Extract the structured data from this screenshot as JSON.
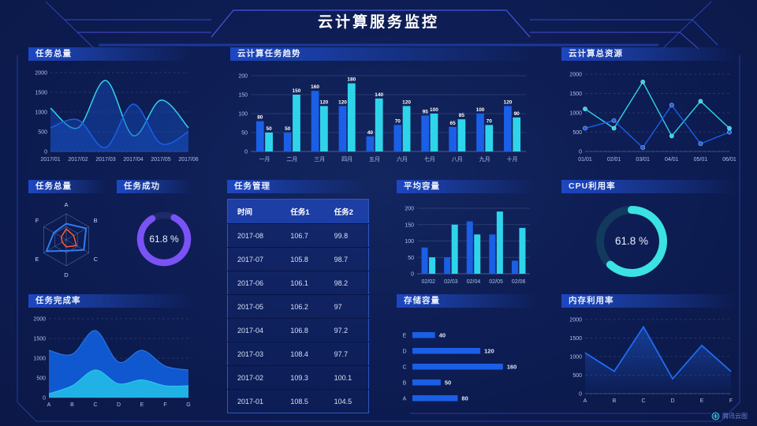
{
  "header": {
    "title": "云计算服务监控"
  },
  "footer": {
    "logo_text": "腾讯云图"
  },
  "colors": {
    "blue": "#1a5fe6",
    "cyan": "#2ed5ea",
    "area_blue": "#115cd6",
    "area_cyan": "#22b6e6",
    "line_blue": "#1f6bf2",
    "radar_blue": "#2e7cf2",
    "orange": "#ff5b33",
    "purple": "#7b52f5",
    "purple_track": "#1f2a68",
    "donut_cyan": "#3ae2e4",
    "cyan_track": "#123a5e",
    "accent_line": "#4a5be8"
  },
  "chart_data": [
    {
      "id": "task_total_line",
      "type": "area-smooth",
      "title": "任务总量",
      "x": [
        "2017/01",
        "2017/02",
        "2017/03",
        "2017/04",
        "2017/05",
        "2017/06"
      ],
      "series": [
        {
          "name": "series-cyan",
          "color": "cyan",
          "values": [
            1100,
            600,
            1800,
            400,
            1300,
            600
          ]
        },
        {
          "name": "series-blue",
          "color": "blue",
          "values": [
            600,
            800,
            100,
            1200,
            200,
            500
          ]
        }
      ],
      "ylim": [
        0,
        2000
      ],
      "yticks": [
        0,
        500,
        1000,
        1500,
        2000
      ],
      "grid": "dashed"
    },
    {
      "id": "task_trend_bar",
      "type": "bar",
      "title": "云计算任务趋势",
      "categories": [
        "一月",
        "二月",
        "三月",
        "四月",
        "五月",
        "六月",
        "七月",
        "八月",
        "九月",
        "十月"
      ],
      "series": [
        {
          "name": "series-blue",
          "color": "blue",
          "values": [
            80,
            50,
            160,
            120,
            40,
            70,
            95,
            65,
            100,
            120
          ]
        },
        {
          "name": "series-cyan",
          "color": "cyan",
          "values": [
            50,
            150,
            120,
            180,
            140,
            120,
            100,
            85,
            70,
            90
          ]
        }
      ],
      "ylim": [
        0,
        200
      ],
      "yticks": [
        0,
        50,
        100,
        150,
        200
      ],
      "labels": true,
      "grid": "solid"
    },
    {
      "id": "cloud_resource_line",
      "type": "line",
      "title": "云计算总资源",
      "x": [
        "01/01",
        "02/01",
        "03/01",
        "04/01",
        "05/01",
        "06/01"
      ],
      "series": [
        {
          "name": "series-cyan",
          "color": "cyan",
          "values": [
            1100,
            600,
            1800,
            400,
            1300,
            600
          ]
        },
        {
          "name": "series-blue",
          "color": "blue",
          "values": [
            600,
            800,
            100,
            1200,
            200,
            500
          ]
        }
      ],
      "ylim": [
        0,
        2000
      ],
      "yticks": [
        0,
        500,
        1000,
        1500,
        2000
      ],
      "grid": "dashed"
    },
    {
      "id": "task_radar",
      "type": "radar",
      "title": "任务总量",
      "axes": [
        "A",
        "B",
        "C",
        "D",
        "E",
        "F"
      ],
      "max": 100,
      "series": [
        {
          "name": "outer",
          "color": "radar_blue",
          "values": [
            62,
            88,
            78,
            42,
            88,
            55
          ]
        },
        {
          "name": "inner",
          "color": "orange",
          "values": [
            42,
            33,
            45,
            27,
            18,
            22
          ]
        }
      ]
    },
    {
      "id": "task_success_donut",
      "type": "donut",
      "title": "任务成功",
      "label": "61.8 %",
      "value": 61.8,
      "color": "purple",
      "track": "purple_track",
      "arc_start": 25,
      "arc_end": 330,
      "label_size": 12
    },
    {
      "id": "task_table",
      "type": "table",
      "title": "任务管理",
      "headers": [
        "时间",
        "任务1",
        "任务2"
      ],
      "rows": [
        [
          "2017-08",
          "106.7",
          "99.8"
        ],
        [
          "2017-07",
          "105.8",
          "98.7"
        ],
        [
          "2017-06",
          "106.1",
          "98.2"
        ],
        [
          "2017-05",
          "106.2",
          "97"
        ],
        [
          "2017-04",
          "106.8",
          "97.2"
        ],
        [
          "2017-03",
          "108.4",
          "97.7"
        ],
        [
          "2017-02",
          "109.3",
          "100.1"
        ],
        [
          "2017-01",
          "108.5",
          "104.5"
        ]
      ]
    },
    {
      "id": "avg_capacity_bar",
      "type": "bar",
      "title": "平均容量",
      "categories": [
        "02/02",
        "02/03",
        "02/04",
        "02/05",
        "02/06"
      ],
      "series": [
        {
          "name": "series-blue",
          "color": "blue",
          "values": [
            80,
            50,
            160,
            120,
            40
          ]
        },
        {
          "name": "series-cyan",
          "color": "cyan",
          "values": [
            50,
            150,
            120,
            190,
            140
          ]
        }
      ],
      "ylim": [
        0,
        200
      ],
      "yticks": [
        0,
        50,
        100,
        150,
        200
      ],
      "labels": false,
      "grid": "solid"
    },
    {
      "id": "cpu_donut",
      "type": "donut",
      "title": "CPU利用率",
      "label": "61.8 %",
      "value": 61.8,
      "color": "donut_cyan",
      "track": "cyan_track",
      "arc_start": 0,
      "arc_end": 222.5,
      "label_size": 13.5
    },
    {
      "id": "completion_area",
      "type": "stacked-area",
      "title": "任务完成率",
      "x": [
        "A",
        "B",
        "C",
        "D",
        "E",
        "F",
        "G"
      ],
      "series": [
        {
          "name": "outer-blue",
          "color": "area_blue",
          "edge": "#2d7be8",
          "values": [
            1200,
            1100,
            1700,
            900,
            1200,
            800,
            700
          ]
        },
        {
          "name": "inner-cyan",
          "color": "area_cyan",
          "edge": "#2fc8f0",
          "values": [
            100,
            300,
            700,
            350,
            450,
            300,
            300
          ]
        }
      ],
      "ylim": [
        0,
        2000
      ],
      "yticks": [
        0,
        500,
        1000,
        1500,
        2000
      ],
      "grid": "dashed"
    },
    {
      "id": "storage_hbar",
      "type": "hbar",
      "title": "存储容量",
      "categories": [
        "E",
        "D",
        "C",
        "B",
        "A"
      ],
      "values": [
        40,
        120,
        160,
        50,
        80
      ],
      "xmax": 170,
      "color": "blue"
    },
    {
      "id": "memory_line",
      "type": "area-line",
      "title": "内存利用率",
      "x": [
        "A",
        "B",
        "C",
        "D",
        "E",
        "F"
      ],
      "values": [
        1100,
        600,
        1800,
        400,
        1300,
        600
      ],
      "ylim": [
        0,
        2000
      ],
      "yticks": [
        0,
        500,
        1000,
        1500,
        2000
      ],
      "grid": "dashed",
      "color": "line_blue"
    }
  ]
}
